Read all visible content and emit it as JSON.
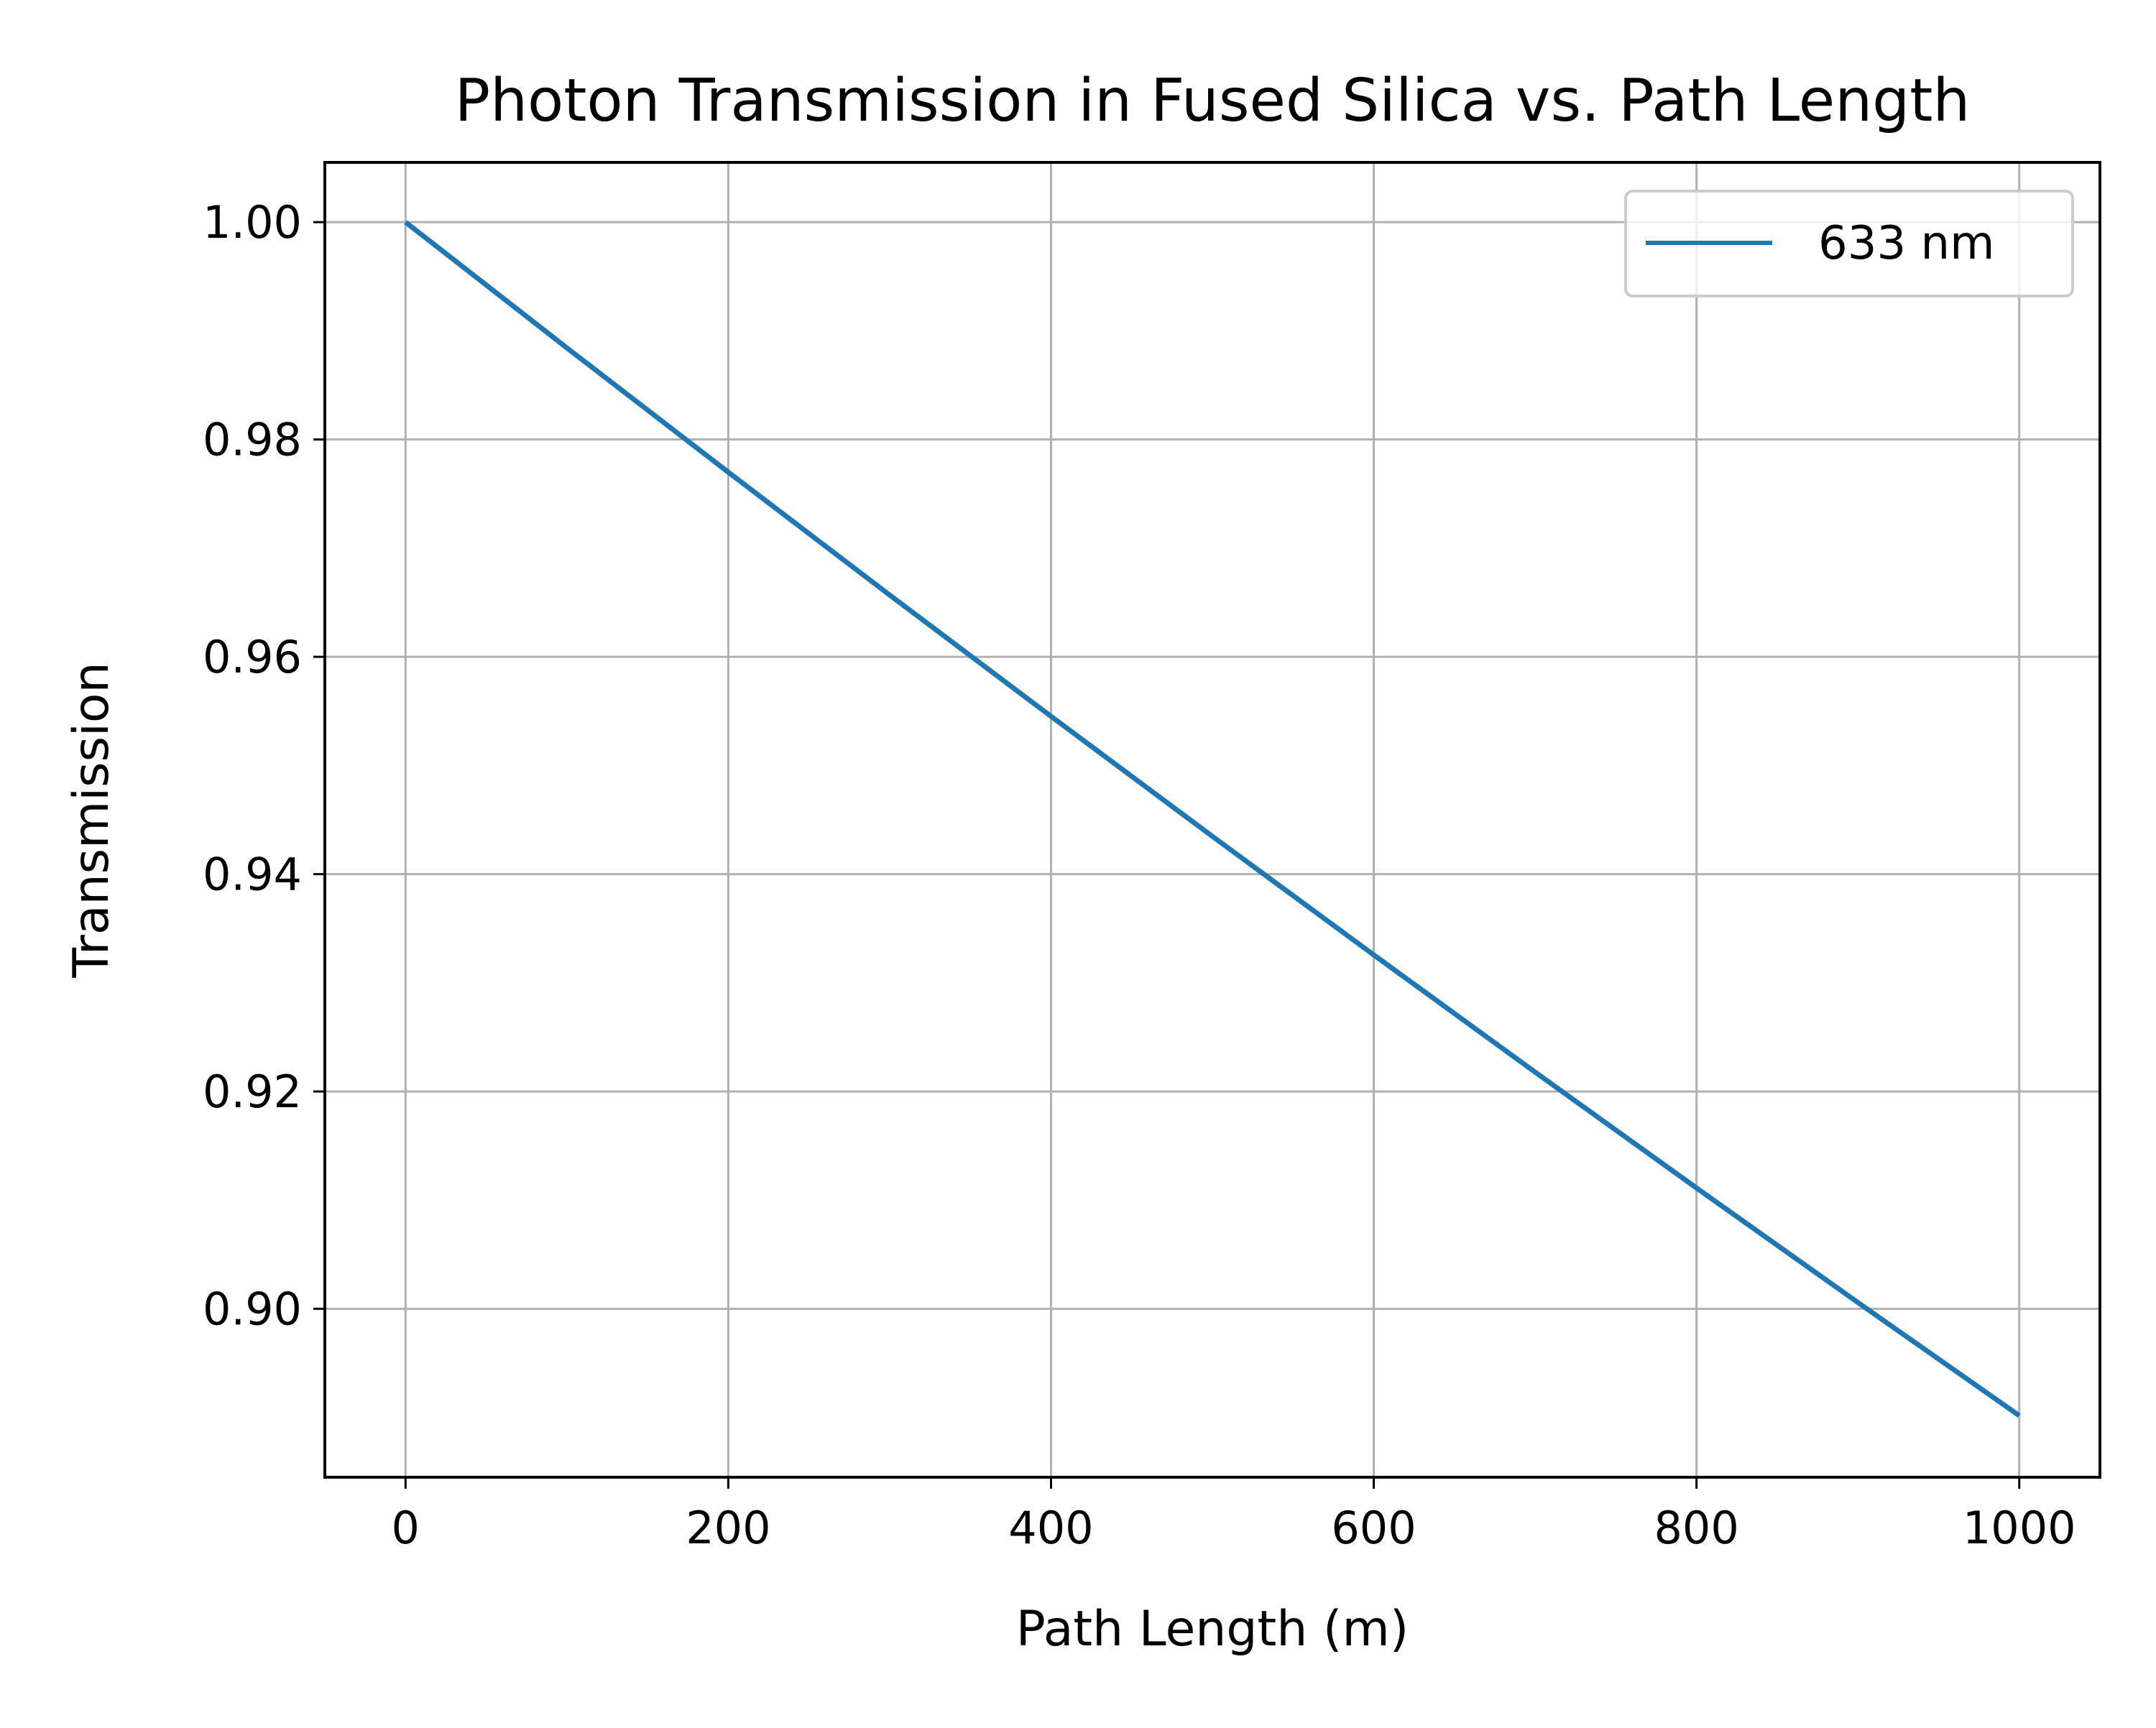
{
  "chart_data": {
    "type": "line",
    "title": "Photon Transmission in Fused Silica vs. Path Length",
    "xlabel": "Path Length (m)",
    "ylabel": "Transmission",
    "xlim": [
      -50,
      1050
    ],
    "ylim": [
      0.8845,
      1.0055
    ],
    "xticks": [
      0,
      200,
      400,
      600,
      800,
      1000
    ],
    "xtick_labels": [
      "0",
      "200",
      "400",
      "600",
      "800",
      "1000"
    ],
    "yticks": [
      0.9,
      0.92,
      0.94,
      0.96,
      0.98,
      1.0
    ],
    "ytick_labels": [
      "0.90",
      "0.92",
      "0.94",
      "0.96",
      "0.98",
      "1.00"
    ],
    "grid": true,
    "legend_position": "upper-right",
    "series": [
      {
        "name": "633 nm",
        "color": "#1f77b4",
        "x": [
          0,
          100,
          200,
          300,
          400,
          500,
          600,
          700,
          800,
          900,
          1000
        ],
        "y": [
          1.0,
          0.98843,
          0.97699,
          0.96569,
          0.95452,
          0.94348,
          0.93257,
          0.92178,
          0.91112,
          0.90058,
          0.89017
        ]
      }
    ]
  }
}
